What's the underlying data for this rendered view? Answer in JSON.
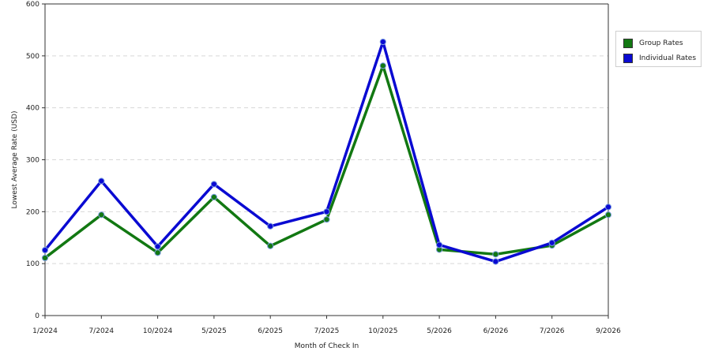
{
  "chart_data": {
    "type": "line",
    "xlabel": "Month of Check In",
    "ylabel": "Lowest Average Rate (USD)",
    "ylim": [
      0,
      600
    ],
    "yticks": [
      0,
      100,
      200,
      300,
      400,
      500,
      600
    ],
    "grid": true,
    "legend_position": "right",
    "categories": [
      "1/2024",
      "7/2024",
      "10/2024",
      "5/2025",
      "6/2025",
      "7/2025",
      "10/2025",
      "5/2026",
      "6/2026",
      "7/2026",
      "9/2026"
    ],
    "series": [
      {
        "name": "Group Rates",
        "color": "#127812",
        "values": [
          111,
          194,
          121,
          228,
          134,
          185,
          481,
          127,
          118,
          135,
          194
        ]
      },
      {
        "name": "Individual Rates",
        "color": "#0a0ad2",
        "values": [
          126,
          259,
          133,
          253,
          172,
          200,
          527,
          136,
          104,
          140,
          209
        ]
      }
    ]
  }
}
